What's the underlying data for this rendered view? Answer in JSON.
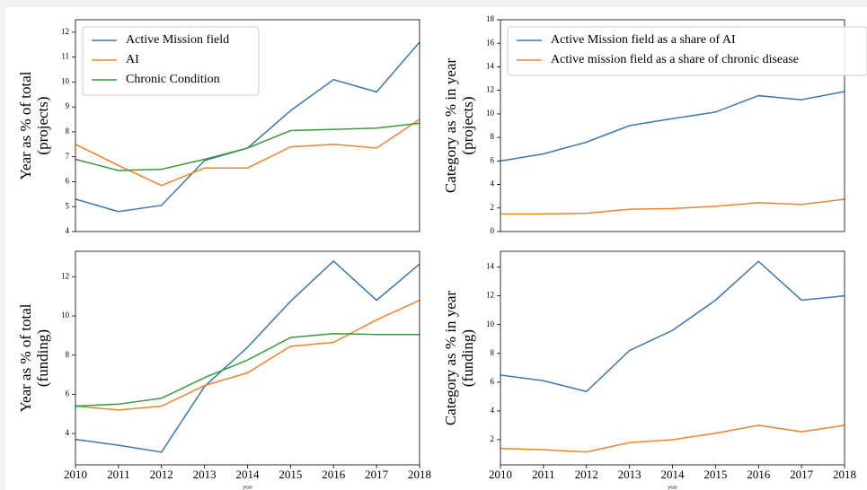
{
  "chart_data": [
    {
      "type": "line",
      "ylabel": [
        "Year as % of total",
        "(projects)"
      ],
      "x": [
        2010,
        2011,
        2012,
        2013,
        2014,
        2015,
        2016,
        2017,
        2018
      ],
      "xlim": [
        2010,
        2018
      ],
      "ylim": [
        4,
        12.5
      ],
      "yticks": [
        4,
        5,
        6,
        7,
        8,
        9,
        10,
        11,
        12
      ],
      "legend": "upper left",
      "series": [
        {
          "name": "Active Mission field",
          "color": "#3b78b0",
          "values": [
            5.3,
            4.8,
            5.05,
            6.85,
            7.35,
            8.85,
            10.1,
            9.6,
            11.6
          ]
        },
        {
          "name": "AI",
          "color": "#f5822a",
          "values": [
            7.5,
            6.65,
            5.85,
            6.55,
            6.55,
            7.4,
            7.5,
            7.35,
            8.5
          ]
        },
        {
          "name": "Chronic Condition",
          "color": "#3a9a3a",
          "values": [
            6.9,
            6.45,
            6.5,
            6.9,
            7.35,
            8.05,
            8.1,
            8.15,
            8.35
          ]
        }
      ]
    },
    {
      "type": "line",
      "ylabel": [
        "Category as % in year",
        "(projects)"
      ],
      "x": [
        2010,
        2011,
        2012,
        2013,
        2014,
        2015,
        2016,
        2017,
        2018
      ],
      "xlim": [
        2010,
        2018
      ],
      "ylim": [
        0,
        18
      ],
      "yticks": [
        0,
        2,
        4,
        6,
        8,
        10,
        12,
        14,
        16,
        18
      ],
      "legend": "upper left",
      "series": [
        {
          "name": "Active Mission field as a share of AI",
          "color": "#3b78b0",
          "values": [
            6.0,
            6.6,
            7.6,
            9.0,
            9.6,
            10.15,
            11.55,
            11.2,
            11.9
          ]
        },
        {
          "name": "Active mission field as a share of chronic disease",
          "color": "#f5822a",
          "values": [
            1.5,
            1.5,
            1.55,
            1.9,
            1.95,
            2.15,
            2.45,
            2.3,
            2.75
          ]
        }
      ]
    },
    {
      "type": "line",
      "ylabel": [
        "Year as % of total",
        "(funding)"
      ],
      "xlabel": "year",
      "x": [
        2010,
        2011,
        2012,
        2013,
        2014,
        2015,
        2016,
        2017,
        2018
      ],
      "xlim": [
        2010,
        2018
      ],
      "xticks": [
        2010,
        2011,
        2012,
        2013,
        2014,
        2015,
        2016,
        2017,
        2018
      ],
      "ylim": [
        2.4,
        13.3
      ],
      "yticks": [
        4,
        6,
        8,
        10,
        12
      ],
      "series": [
        {
          "color": "#3b78b0",
          "values": [
            3.7,
            3.4,
            3.05,
            6.4,
            8.4,
            10.75,
            12.8,
            10.8,
            12.65
          ]
        },
        {
          "color": "#f5822a",
          "values": [
            5.4,
            5.2,
            5.4,
            6.45,
            7.1,
            8.45,
            8.65,
            9.8,
            10.8
          ]
        },
        {
          "color": "#3a9a3a",
          "values": [
            5.4,
            5.5,
            5.8,
            6.85,
            7.75,
            8.9,
            9.1,
            9.05,
            9.05
          ]
        }
      ]
    },
    {
      "type": "line",
      "ylabel": [
        "Category as % in year",
        "(funding)"
      ],
      "xlabel": "year",
      "x": [
        2010,
        2011,
        2012,
        2013,
        2014,
        2015,
        2016,
        2017,
        2018
      ],
      "xlim": [
        2010,
        2018
      ],
      "xticks": [
        2010,
        2011,
        2012,
        2013,
        2014,
        2015,
        2016,
        2017,
        2018
      ],
      "ylim": [
        0.25,
        15.1
      ],
      "yticks": [
        2,
        4,
        6,
        8,
        10,
        12,
        14
      ],
      "series": [
        {
          "color": "#3b78b0",
          "values": [
            6.5,
            6.1,
            5.35,
            8.2,
            9.6,
            11.7,
            14.4,
            11.7,
            12.0
          ]
        },
        {
          "color": "#f5822a",
          "values": [
            1.4,
            1.3,
            1.15,
            1.8,
            2.0,
            2.45,
            3.0,
            2.55,
            3.0
          ]
        }
      ]
    }
  ]
}
